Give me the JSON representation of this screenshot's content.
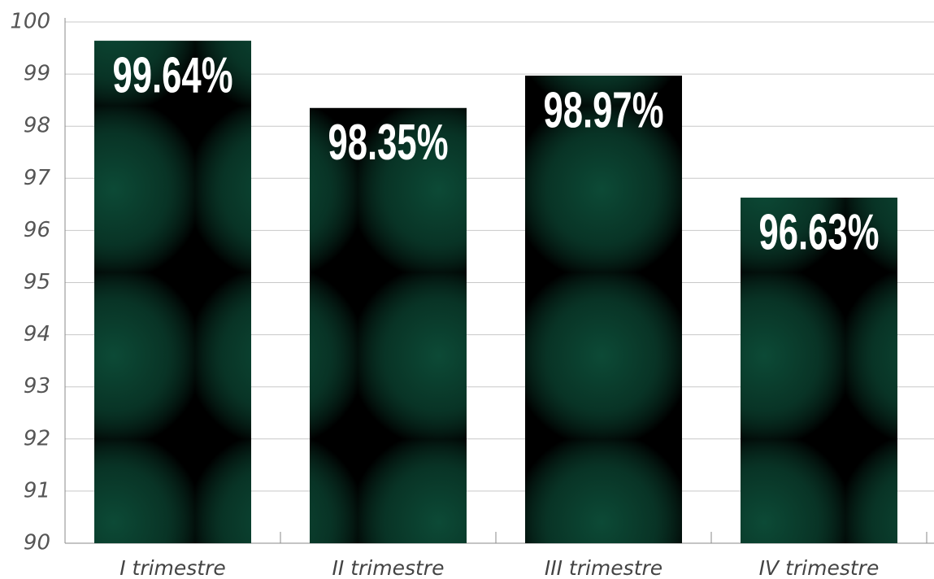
{
  "chart_data": {
    "type": "bar",
    "categories": [
      "I trimestre",
      "II trimestre",
      "III trimestre",
      "IV trimestre"
    ],
    "values": [
      99.64,
      98.35,
      98.97,
      96.63
    ],
    "value_labels": [
      "99.64%",
      "98.35%",
      "98.97%",
      "96.63%"
    ],
    "color": "#0c4a36",
    "ylim": [
      90,
      100
    ],
    "yticks": [
      90,
      91,
      92,
      93,
      94,
      95,
      96,
      97,
      98,
      99,
      100
    ],
    "grid": true
  }
}
